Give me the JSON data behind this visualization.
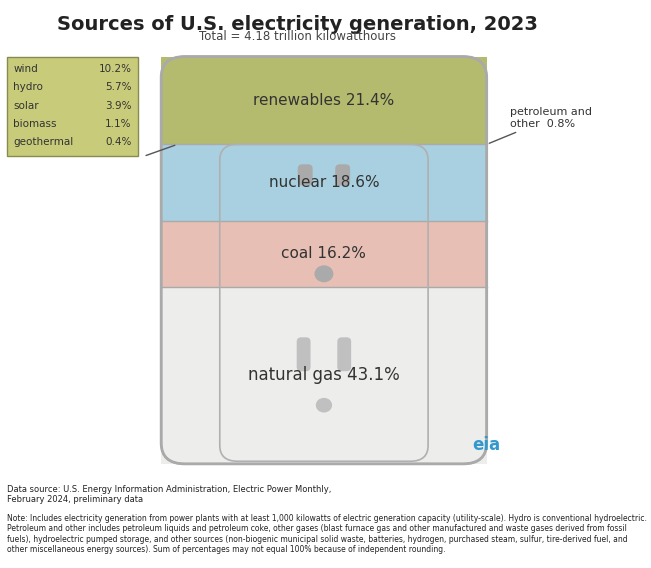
{
  "title": "Sources of U.S. electricity generation, 2023",
  "subtitle": "Total = 4.18 trillion kilowatthours",
  "segments": [
    {
      "label": "renewables 21.4%",
      "pct": 21.4,
      "color": "#b5bb6e"
    },
    {
      "label": "nuclear 18.6%",
      "pct": 18.6,
      "color": "#a8d0e0"
    },
    {
      "label": "coal 16.2%",
      "pct": 16.2,
      "color": "#e8bfb5"
    },
    {
      "label": "natural gas 43.1%",
      "pct": 43.1,
      "color": "#ededec"
    }
  ],
  "legend_items": [
    {
      "label": "wind",
      "pct": "10.2%"
    },
    {
      "label": "hydro",
      "pct": "5.7%"
    },
    {
      "label": "solar",
      "pct": "3.9%"
    },
    {
      "label": "biomass",
      "pct": "1.1%"
    },
    {
      "label": "geothermal",
      "pct": "0.4%"
    }
  ],
  "legend_bg": "#c8cc7a",
  "petroleum_label": "petroleum and\nother  0.8%",
  "datasource": "Data source: U.S. Energy Information Administration, Electric Power Monthly,\nFebruary 2024, preliminary data",
  "note": "Note: Includes electricity generation from power plants with at least 1,000 kilowatts of electric generation capacity (utility-scale). Hydro is conventional hydroelectric. Petroleum and other includes petroleum liquids and petroleum coke, other gases (blast furnace gas and other manufactured and waste gases derived from fossil fuels), hydroelectric pumped storage, and other sources (non-biogenic municipal solid waste, batteries, hydrogen, purchased steam, sulfur, tire-derived fuel, and other miscellaneous energy sources). Sum of percentages may not equal 100% because of independent rounding.",
  "bg_color": "#ffffff",
  "outlet_color": "#c8caca",
  "outlet_inner": "#d8d8d6",
  "border_color": "#9aaa7a"
}
